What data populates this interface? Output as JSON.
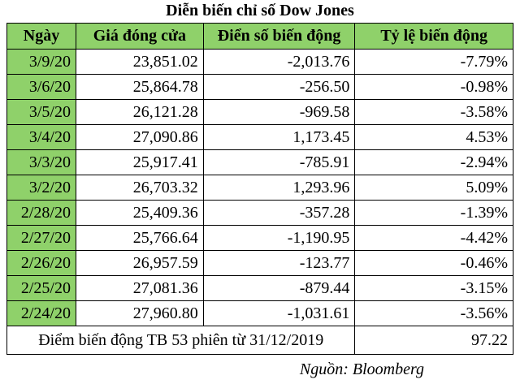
{
  "title": "Diễn biến chỉ số Dow Jones",
  "table": {
    "header": [
      "Ngày",
      "Giá đóng cửa",
      "Điển số biến động",
      "Tỷ lệ biến động"
    ],
    "rows": [
      [
        "3/9/20",
        "23,851.02",
        "-2,013.76",
        "-7.79%"
      ],
      [
        "3/6/20",
        "25,864.78",
        "-256.50",
        "-0.98%"
      ],
      [
        "3/5/20",
        "26,121.28",
        "-969.58",
        "-3.58%"
      ],
      [
        "3/4/20",
        "27,090.86",
        "1,173.45",
        "4.53%"
      ],
      [
        "3/3/20",
        "25,917.41",
        "-785.91",
        "-2.94%"
      ],
      [
        "3/2/20",
        "26,703.32",
        "1,293.96",
        "5.09%"
      ],
      [
        "2/28/20",
        "25,409.36",
        "-357.28",
        "-1.39%"
      ],
      [
        "2/27/20",
        "25,766.64",
        "-1,190.95",
        "-4.42%"
      ],
      [
        "2/26/20",
        "26,957.59",
        "-123.77",
        "-0.46%"
      ],
      [
        "2/25/20",
        "27,081.36",
        "-879.44",
        "-3.15%"
      ],
      [
        "2/24/20",
        "27,960.80",
        "-1,031.61",
        "-3.56%"
      ]
    ],
    "footer": {
      "label": "Điểm biến động TB 53 phiên từ 31/12/2019",
      "value": "97.22"
    }
  },
  "source": "Nguồn: Bloomberg"
}
